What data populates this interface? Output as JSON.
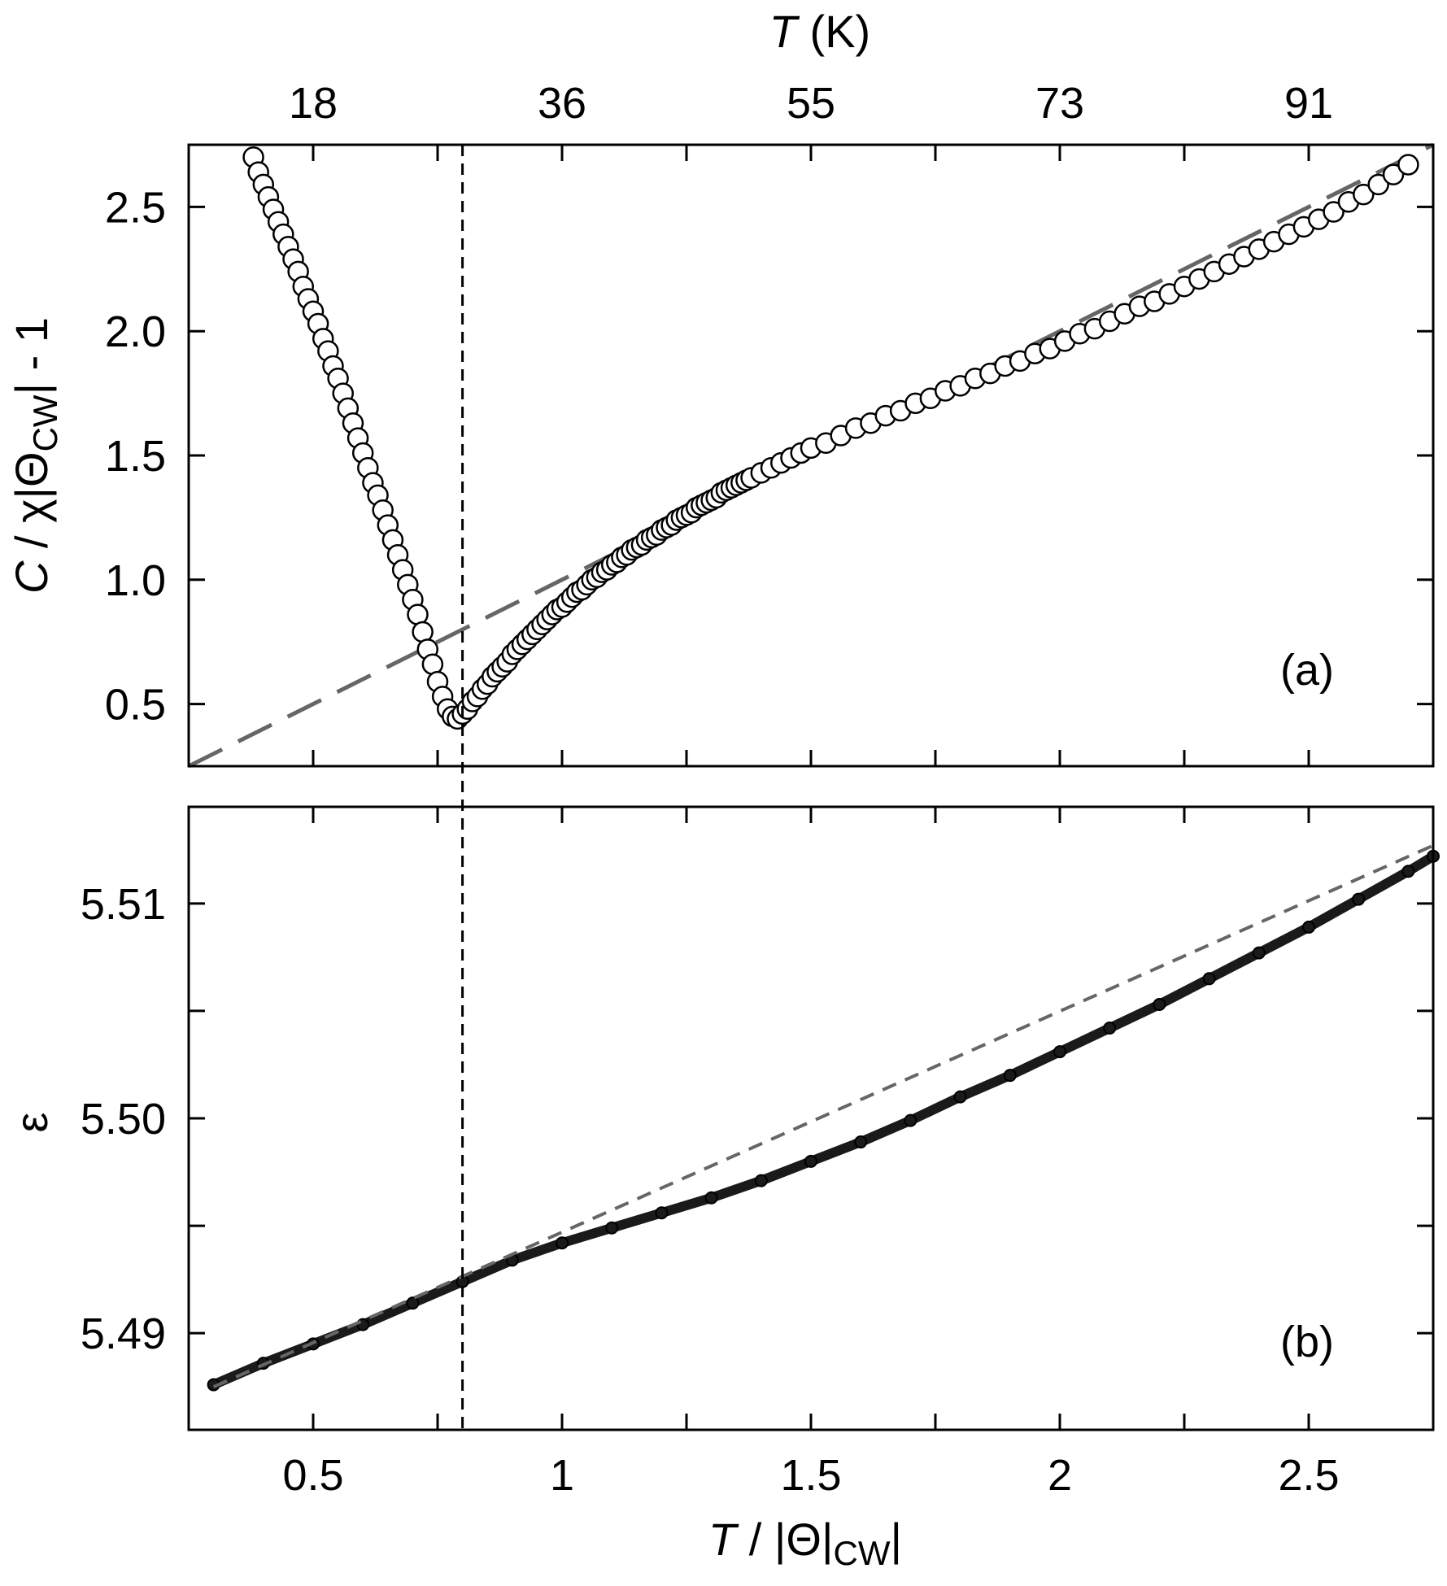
{
  "colors": {
    "axes": "#000000",
    "fit_line": "#666666",
    "marker_fill_a": "#ffffff",
    "marker_stroke": "#000000",
    "marker_fill_b": "#1a1a1a"
  },
  "chart_data": [
    {
      "panel": "a",
      "type": "scatter",
      "panel_label": "(a)",
      "ylabel": {
        "parts": [
          "C",
          " / χ|Θ",
          "CW",
          "| - 1"
        ]
      },
      "xlim": [
        0.25,
        2.75
      ],
      "ylim": [
        0.25,
        2.75
      ],
      "yticks": [
        0.5,
        1.0,
        1.5,
        2.0,
        2.5
      ],
      "ytick_labels": [
        "0.5",
        "1.0",
        "1.5",
        "2.0",
        "2.5"
      ],
      "xticks_minor": [
        0.5,
        0.75,
        1.0,
        1.25,
        1.5,
        1.75,
        2.0,
        2.25,
        2.5
      ],
      "top_axis": {
        "title": {
          "italic": "T",
          "rest": " (K)"
        },
        "tick_labels": [
          "18",
          "36",
          "55",
          "73",
          "91"
        ],
        "tick_positions_x": [
          0.5,
          1.0,
          1.5,
          2.0,
          2.5
        ]
      },
      "series": [
        {
          "marker": "open-circle",
          "points": [
            [
              0.38,
              2.7
            ],
            [
              0.39,
              2.64
            ],
            [
              0.4,
              2.59
            ],
            [
              0.41,
              2.54
            ],
            [
              0.42,
              2.49
            ],
            [
              0.43,
              2.44
            ],
            [
              0.44,
              2.39
            ],
            [
              0.45,
              2.34
            ],
            [
              0.46,
              2.29
            ],
            [
              0.47,
              2.24
            ],
            [
              0.48,
              2.18
            ],
            [
              0.49,
              2.13
            ],
            [
              0.5,
              2.08
            ],
            [
              0.51,
              2.03
            ],
            [
              0.52,
              1.97
            ],
            [
              0.53,
              1.92
            ],
            [
              0.54,
              1.86
            ],
            [
              0.55,
              1.81
            ],
            [
              0.56,
              1.75
            ],
            [
              0.57,
              1.69
            ],
            [
              0.58,
              1.63
            ],
            [
              0.59,
              1.57
            ],
            [
              0.6,
              1.51
            ],
            [
              0.61,
              1.45
            ],
            [
              0.62,
              1.39
            ],
            [
              0.63,
              1.34
            ],
            [
              0.64,
              1.28
            ],
            [
              0.65,
              1.22
            ],
            [
              0.66,
              1.16
            ],
            [
              0.67,
              1.1
            ],
            [
              0.68,
              1.04
            ],
            [
              0.69,
              0.98
            ],
            [
              0.7,
              0.92
            ],
            [
              0.71,
              0.86
            ],
            [
              0.72,
              0.79
            ],
            [
              0.73,
              0.72
            ],
            [
              0.74,
              0.66
            ],
            [
              0.75,
              0.59
            ],
            [
              0.76,
              0.53
            ],
            [
              0.77,
              0.48
            ],
            [
              0.78,
              0.45
            ],
            [
              0.79,
              0.44
            ],
            [
              0.8,
              0.46
            ],
            [
              0.81,
              0.48
            ],
            [
              0.82,
              0.51
            ],
            [
              0.83,
              0.53
            ],
            [
              0.84,
              0.56
            ],
            [
              0.85,
              0.58
            ],
            [
              0.86,
              0.61
            ],
            [
              0.87,
              0.63
            ],
            [
              0.88,
              0.65
            ],
            [
              0.89,
              0.67
            ],
            [
              0.9,
              0.7
            ],
            [
              0.91,
              0.72
            ],
            [
              0.92,
              0.74
            ],
            [
              0.93,
              0.76
            ],
            [
              0.94,
              0.78
            ],
            [
              0.95,
              0.8
            ],
            [
              0.96,
              0.82
            ],
            [
              0.97,
              0.84
            ],
            [
              0.98,
              0.86
            ],
            [
              0.99,
              0.88
            ],
            [
              1.0,
              0.89
            ],
            [
              1.01,
              0.91
            ],
            [
              1.02,
              0.93
            ],
            [
              1.03,
              0.95
            ],
            [
              1.04,
              0.96
            ],
            [
              1.05,
              0.98
            ],
            [
              1.06,
              1.0
            ],
            [
              1.07,
              1.01
            ],
            [
              1.08,
              1.03
            ],
            [
              1.09,
              1.04
            ],
            [
              1.1,
              1.06
            ],
            [
              1.11,
              1.07
            ],
            [
              1.12,
              1.09
            ],
            [
              1.13,
              1.1
            ],
            [
              1.14,
              1.12
            ],
            [
              1.15,
              1.13
            ],
            [
              1.16,
              1.14
            ],
            [
              1.17,
              1.16
            ],
            [
              1.18,
              1.17
            ],
            [
              1.19,
              1.18
            ],
            [
              1.2,
              1.2
            ],
            [
              1.21,
              1.21
            ],
            [
              1.22,
              1.22
            ],
            [
              1.23,
              1.24
            ],
            [
              1.24,
              1.25
            ],
            [
              1.25,
              1.26
            ],
            [
              1.26,
              1.27
            ],
            [
              1.27,
              1.29
            ],
            [
              1.28,
              1.3
            ],
            [
              1.29,
              1.31
            ],
            [
              1.3,
              1.32
            ],
            [
              1.31,
              1.33
            ],
            [
              1.32,
              1.35
            ],
            [
              1.33,
              1.36
            ],
            [
              1.34,
              1.37
            ],
            [
              1.35,
              1.38
            ],
            [
              1.36,
              1.39
            ],
            [
              1.37,
              1.4
            ],
            [
              1.38,
              1.41
            ],
            [
              1.4,
              1.43
            ],
            [
              1.42,
              1.45
            ],
            [
              1.44,
              1.47
            ],
            [
              1.46,
              1.49
            ],
            [
              1.48,
              1.51
            ],
            [
              1.5,
              1.53
            ],
            [
              1.53,
              1.55
            ],
            [
              1.56,
              1.58
            ],
            [
              1.59,
              1.61
            ],
            [
              1.62,
              1.63
            ],
            [
              1.65,
              1.66
            ],
            [
              1.68,
              1.68
            ],
            [
              1.71,
              1.71
            ],
            [
              1.74,
              1.73
            ],
            [
              1.77,
              1.76
            ],
            [
              1.8,
              1.78
            ],
            [
              1.83,
              1.81
            ],
            [
              1.86,
              1.83
            ],
            [
              1.89,
              1.86
            ],
            [
              1.92,
              1.88
            ],
            [
              1.95,
              1.91
            ],
            [
              1.98,
              1.93
            ],
            [
              2.01,
              1.96
            ],
            [
              2.04,
              1.99
            ],
            [
              2.07,
              2.01
            ],
            [
              2.1,
              2.04
            ],
            [
              2.13,
              2.07
            ],
            [
              2.16,
              2.1
            ],
            [
              2.19,
              2.12
            ],
            [
              2.22,
              2.15
            ],
            [
              2.25,
              2.18
            ],
            [
              2.28,
              2.21
            ],
            [
              2.31,
              2.24
            ],
            [
              2.34,
              2.27
            ],
            [
              2.37,
              2.3
            ],
            [
              2.4,
              2.33
            ],
            [
              2.43,
              2.36
            ],
            [
              2.46,
              2.39
            ],
            [
              2.49,
              2.42
            ],
            [
              2.52,
              2.45
            ],
            [
              2.55,
              2.48
            ],
            [
              2.58,
              2.52
            ],
            [
              2.61,
              2.55
            ],
            [
              2.64,
              2.59
            ],
            [
              2.67,
              2.63
            ],
            [
              2.7,
              2.67
            ]
          ]
        }
      ],
      "fit_line": {
        "style": "long-dash",
        "points": [
          [
            0.25,
            0.25
          ],
          [
            2.75,
            2.75
          ]
        ]
      }
    },
    {
      "panel": "b",
      "type": "scatter",
      "panel_label": "(b)",
      "ylabel": "ε",
      "xlabel": {
        "italic": "T",
        "rest": " / |Θ|",
        "sub": "CW",
        "end": "|"
      },
      "xlim": [
        0.25,
        2.75
      ],
      "ylim": [
        5.4855,
        5.5145
      ],
      "yticks": [
        5.49,
        5.5,
        5.51
      ],
      "ytick_labels": [
        "5.49",
        "5.50",
        "5.51"
      ],
      "yticks_minor": [
        5.495,
        5.505
      ],
      "xticks": [
        0.5,
        1.0,
        1.5,
        2.0,
        2.5
      ],
      "xtick_labels": [
        "0.5",
        "1",
        "1.5",
        "2",
        "2.5"
      ],
      "xticks_minor": [
        0.75,
        1.25,
        1.75,
        2.25
      ],
      "series": [
        {
          "marker": "filled-circle",
          "curve": [
            [
              0.3,
              5.4876
            ],
            [
              0.4,
              5.4886
            ],
            [
              0.5,
              5.4895
            ],
            [
              0.6,
              5.4904
            ],
            [
              0.7,
              5.4914
            ],
            [
              0.8,
              5.4924
            ],
            [
              0.9,
              5.4934
            ],
            [
              1.0,
              5.4942
            ],
            [
              1.1,
              5.4949
            ],
            [
              1.2,
              5.4956
            ],
            [
              1.3,
              5.4963
            ],
            [
              1.4,
              5.4971
            ],
            [
              1.5,
              5.498
            ],
            [
              1.6,
              5.4989
            ],
            [
              1.7,
              5.4999
            ],
            [
              1.8,
              5.501
            ],
            [
              1.9,
              5.502
            ],
            [
              2.0,
              5.5031
            ],
            [
              2.1,
              5.5042
            ],
            [
              2.2,
              5.5053
            ],
            [
              2.3,
              5.5065
            ],
            [
              2.4,
              5.5077
            ],
            [
              2.5,
              5.5089
            ],
            [
              2.6,
              5.5102
            ],
            [
              2.7,
              5.5115
            ],
            [
              2.75,
              5.5122
            ]
          ]
        }
      ],
      "fit_line": {
        "style": "short-dash",
        "points": [
          [
            0.3,
            5.4875
          ],
          [
            2.75,
            5.5127
          ]
        ]
      }
    }
  ],
  "transition_marker": {
    "style": "vertical-dashed",
    "x": 0.8
  }
}
